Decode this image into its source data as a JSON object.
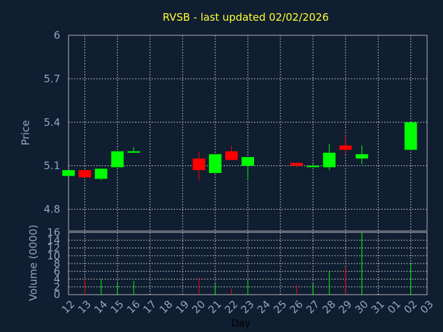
{
  "chart_data": [
    {
      "type": "candlestick",
      "title": "RVSB - last updated 02/02/2026",
      "ylabel": "Price",
      "ylim": [
        4.65,
        6.0
      ],
      "yticks": [
        "4.8",
        "5.1",
        "5.4",
        "5.7",
        "6"
      ],
      "ytick_values": [
        4.8,
        5.1,
        5.4,
        5.7,
        6.0
      ],
      "categories": [
        "12",
        "13",
        "14",
        "15",
        "16",
        "17",
        "18",
        "19",
        "20",
        "21",
        "22",
        "23",
        "24",
        "25",
        "26",
        "27",
        "28",
        "29",
        "30",
        "31",
        "01",
        "02",
        "03"
      ],
      "up_color": "#00ff00",
      "down_color": "#ff0000",
      "series": [
        {
          "x": "12",
          "open": 5.03,
          "close": 5.07,
          "high": 5.07,
          "low": 5.03
        },
        {
          "x": "13",
          "open": 5.07,
          "close": 5.02,
          "high": 5.07,
          "low": 5.02
        },
        {
          "x": "14",
          "open": 5.01,
          "close": 5.08,
          "high": 5.08,
          "low": 5.0
        },
        {
          "x": "15",
          "open": 5.09,
          "close": 5.2,
          "high": 5.2,
          "low": 5.09
        },
        {
          "x": "16",
          "open": 5.19,
          "close": 5.2,
          "high": 5.23,
          "low": 5.19
        },
        {
          "x": "20",
          "open": 5.15,
          "close": 5.07,
          "high": 5.2,
          "low": 5.0
        },
        {
          "x": "21",
          "open": 5.05,
          "close": 5.18,
          "high": 5.18,
          "low": 5.05
        },
        {
          "x": "22",
          "open": 5.2,
          "close": 5.14,
          "high": 5.24,
          "low": 5.14
        },
        {
          "x": "23",
          "open": 5.1,
          "close": 5.16,
          "high": 5.16,
          "low": 5.0
        },
        {
          "x": "26",
          "open": 5.12,
          "close": 5.1,
          "high": 5.12,
          "low": 5.09
        },
        {
          "x": "27",
          "open": 5.1,
          "close": 5.1,
          "high": 5.11,
          "low": 5.09
        },
        {
          "x": "28",
          "open": 5.09,
          "close": 5.19,
          "high": 5.25,
          "low": 5.07
        },
        {
          "x": "29",
          "open": 5.24,
          "close": 5.21,
          "high": 5.31,
          "low": 5.18
        },
        {
          "x": "30",
          "open": 5.15,
          "close": 5.18,
          "high": 5.24,
          "low": 5.11
        },
        {
          "x": "02",
          "open": 5.21,
          "close": 5.4,
          "high": 5.4,
          "low": 5.21
        }
      ]
    },
    {
      "type": "bar",
      "ylabel": "Volume (0000)",
      "xlabel": "Day",
      "ylim": [
        0,
        16
      ],
      "yticks": [
        "0",
        "2",
        "4",
        "6",
        "8",
        "10",
        "12",
        "14",
        "16"
      ],
      "ytick_values": [
        0,
        2,
        4,
        6,
        8,
        10,
        12,
        14,
        16
      ],
      "categories": [
        "12",
        "13",
        "14",
        "15",
        "16",
        "17",
        "18",
        "19",
        "20",
        "21",
        "22",
        "23",
        "24",
        "25",
        "26",
        "27",
        "28",
        "29",
        "30",
        "31",
        "01",
        "02",
        "03"
      ],
      "series": [
        {
          "x": "13",
          "value": 4.0,
          "color": "#ff0000"
        },
        {
          "x": "14",
          "value": 4.0,
          "color": "#00ff00"
        },
        {
          "x": "15",
          "value": 3.0,
          "color": "#00ff00"
        },
        {
          "x": "16",
          "value": 3.5,
          "color": "#00ff00"
        },
        {
          "x": "20",
          "value": 4.5,
          "color": "#ff0000"
        },
        {
          "x": "21",
          "value": 3.0,
          "color": "#00ff00"
        },
        {
          "x": "22",
          "value": 1.5,
          "color": "#ff0000"
        },
        {
          "x": "23",
          "value": 3.5,
          "color": "#00ff00"
        },
        {
          "x": "26",
          "value": 2.5,
          "color": "#ff0000"
        },
        {
          "x": "27",
          "value": 3.0,
          "color": "#00ff00"
        },
        {
          "x": "28",
          "value": 6.0,
          "color": "#00ff00"
        },
        {
          "x": "29",
          "value": 7.0,
          "color": "#ff0000"
        },
        {
          "x": "30",
          "value": 16.0,
          "color": "#00ff00"
        },
        {
          "x": "02",
          "value": 8.0,
          "color": "#00ff00"
        }
      ]
    }
  ],
  "colors": {
    "background": "#0f1e30",
    "plot_background": "#0f1e30",
    "grid": "#b4b4b4",
    "axis_text": "#8fa6c4",
    "title": "#ffff33",
    "xlabel": "#000000"
  }
}
